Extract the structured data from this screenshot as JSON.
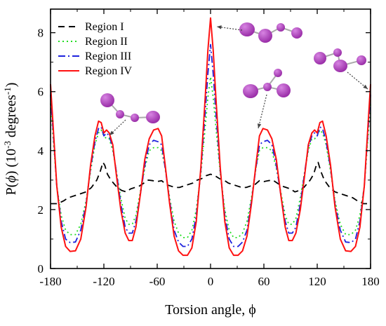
{
  "chart_data": {
    "type": "line",
    "xlabel": "Torsion angle, ϕ",
    "ylabel_parts": [
      "P(",
      "ϕ",
      ") (10",
      "-3",
      " degrees",
      "-1",
      ")"
    ],
    "xlim": [
      -180,
      180
    ],
    "ylim": [
      0,
      8.8
    ],
    "xticks": [
      -180,
      -120,
      -60,
      0,
      60,
      120,
      180
    ],
    "yticks": [
      0,
      2,
      4,
      6,
      8
    ],
    "legend_position": "top-left",
    "grid": false,
    "series": [
      {
        "name": "Region I",
        "color": "#000000",
        "dash": "9,6",
        "points": [
          [
            -180,
            2.2
          ],
          [
            -172,
            2.2
          ],
          [
            -165,
            2.3
          ],
          [
            -160,
            2.4
          ],
          [
            -150,
            2.5
          ],
          [
            -140,
            2.6
          ],
          [
            -134,
            2.75
          ],
          [
            -128,
            3.0
          ],
          [
            -124,
            3.3
          ],
          [
            -121,
            3.6
          ],
          [
            -119,
            3.5
          ],
          [
            -116,
            3.2
          ],
          [
            -112,
            3.0
          ],
          [
            -105,
            2.75
          ],
          [
            -100,
            2.65
          ],
          [
            -95,
            2.6
          ],
          [
            -90,
            2.7
          ],
          [
            -85,
            2.75
          ],
          [
            -80,
            2.8
          ],
          [
            -75,
            2.9
          ],
          [
            -70,
            3.0
          ],
          [
            -65,
            2.98
          ],
          [
            -60,
            2.95
          ],
          [
            -55,
            2.98
          ],
          [
            -50,
            2.85
          ],
          [
            -45,
            2.8
          ],
          [
            -40,
            2.75
          ],
          [
            -35,
            2.75
          ],
          [
            -30,
            2.8
          ],
          [
            -25,
            2.85
          ],
          [
            -20,
            2.9
          ],
          [
            -15,
            3.0
          ],
          [
            -10,
            3.05
          ],
          [
            -5,
            3.15
          ],
          [
            0,
            3.2
          ],
          [
            5,
            3.15
          ],
          [
            10,
            3.05
          ],
          [
            15,
            3.0
          ],
          [
            20,
            2.9
          ],
          [
            25,
            2.85
          ],
          [
            30,
            2.8
          ],
          [
            35,
            2.75
          ],
          [
            40,
            2.75
          ],
          [
            45,
            2.8
          ],
          [
            50,
            2.85
          ],
          [
            55,
            2.98
          ],
          [
            60,
            2.95
          ],
          [
            65,
            2.98
          ],
          [
            70,
            3.0
          ],
          [
            75,
            2.9
          ],
          [
            80,
            2.8
          ],
          [
            85,
            2.75
          ],
          [
            90,
            2.7
          ],
          [
            95,
            2.6
          ],
          [
            100,
            2.65
          ],
          [
            105,
            2.75
          ],
          [
            112,
            3.0
          ],
          [
            116,
            3.2
          ],
          [
            119,
            3.5
          ],
          [
            121,
            3.6
          ],
          [
            124,
            3.3
          ],
          [
            128,
            3.0
          ],
          [
            134,
            2.75
          ],
          [
            140,
            2.6
          ],
          [
            150,
            2.5
          ],
          [
            160,
            2.4
          ],
          [
            165,
            2.3
          ],
          [
            172,
            2.2
          ],
          [
            180,
            2.2
          ]
        ]
      },
      {
        "name": "Region II",
        "color": "#22dd22",
        "dash": "2,4",
        "points": [
          [
            -180,
            5.6
          ],
          [
            -177,
            4.4
          ],
          [
            -173,
            2.8
          ],
          [
            -168,
            1.8
          ],
          [
            -163,
            1.3
          ],
          [
            -158,
            1.15
          ],
          [
            -152,
            1.15
          ],
          [
            -146,
            1.5
          ],
          [
            -140,
            2.3
          ],
          [
            -135,
            3.3
          ],
          [
            -130,
            4.2
          ],
          [
            -126,
            4.6
          ],
          [
            -123,
            4.7
          ],
          [
            -120,
            4.5
          ],
          [
            -117,
            4.4
          ],
          [
            -114,
            4.4
          ],
          [
            -110,
            4.0
          ],
          [
            -106,
            3.3
          ],
          [
            -101,
            2.4
          ],
          [
            -96,
            1.7
          ],
          [
            -92,
            1.5
          ],
          [
            -88,
            1.5
          ],
          [
            -84,
            1.8
          ],
          [
            -79,
            2.6
          ],
          [
            -74,
            3.4
          ],
          [
            -69,
            4.0
          ],
          [
            -64,
            4.1
          ],
          [
            -59,
            4.1
          ],
          [
            -55,
            4.0
          ],
          [
            -51,
            3.4
          ],
          [
            -46,
            2.4
          ],
          [
            -41,
            1.6
          ],
          [
            -36,
            1.2
          ],
          [
            -31,
            1.05
          ],
          [
            -26,
            1.05
          ],
          [
            -21,
            1.3
          ],
          [
            -16,
            2.0
          ],
          [
            -11,
            3.2
          ],
          [
            -6,
            4.8
          ],
          [
            -3,
            5.8
          ],
          [
            0,
            6.5
          ],
          [
            3,
            5.8
          ],
          [
            6,
            4.8
          ],
          [
            11,
            3.2
          ],
          [
            16,
            2.0
          ],
          [
            21,
            1.3
          ],
          [
            26,
            1.05
          ],
          [
            31,
            1.05
          ],
          [
            36,
            1.2
          ],
          [
            41,
            1.6
          ],
          [
            46,
            2.4
          ],
          [
            51,
            3.4
          ],
          [
            55,
            4.0
          ],
          [
            59,
            4.1
          ],
          [
            64,
            4.1
          ],
          [
            69,
            4.0
          ],
          [
            74,
            3.4
          ],
          [
            79,
            2.6
          ],
          [
            84,
            1.8
          ],
          [
            88,
            1.5
          ],
          [
            92,
            1.5
          ],
          [
            96,
            1.7
          ],
          [
            101,
            2.4
          ],
          [
            106,
            3.3
          ],
          [
            110,
            4.0
          ],
          [
            114,
            4.4
          ],
          [
            117,
            4.4
          ],
          [
            120,
            4.5
          ],
          [
            123,
            4.7
          ],
          [
            126,
            4.6
          ],
          [
            130,
            4.2
          ],
          [
            135,
            3.3
          ],
          [
            140,
            2.3
          ],
          [
            146,
            1.5
          ],
          [
            152,
            1.15
          ],
          [
            158,
            1.15
          ],
          [
            163,
            1.3
          ],
          [
            168,
            1.8
          ],
          [
            173,
            2.8
          ],
          [
            177,
            4.4
          ],
          [
            180,
            5.6
          ]
        ]
      },
      {
        "name": "Region III",
        "color": "#1e22dd",
        "dash": "10,4,2,4",
        "points": [
          [
            -180,
            5.9
          ],
          [
            -177,
            4.6
          ],
          [
            -173,
            2.8
          ],
          [
            -168,
            1.6
          ],
          [
            -163,
            1.0
          ],
          [
            -158,
            0.88
          ],
          [
            -152,
            0.9
          ],
          [
            -146,
            1.3
          ],
          [
            -140,
            2.2
          ],
          [
            -135,
            3.4
          ],
          [
            -130,
            4.3
          ],
          [
            -126,
            4.75
          ],
          [
            -123,
            4.8
          ],
          [
            -120,
            4.5
          ],
          [
            -117,
            4.6
          ],
          [
            -114,
            4.5
          ],
          [
            -110,
            4.1
          ],
          [
            -106,
            3.3
          ],
          [
            -101,
            2.2
          ],
          [
            -96,
            1.4
          ],
          [
            -92,
            1.2
          ],
          [
            -88,
            1.2
          ],
          [
            -84,
            1.6
          ],
          [
            -79,
            2.5
          ],
          [
            -74,
            3.5
          ],
          [
            -69,
            4.2
          ],
          [
            -64,
            4.35
          ],
          [
            -59,
            4.3
          ],
          [
            -55,
            4.2
          ],
          [
            -51,
            3.4
          ],
          [
            -46,
            2.3
          ],
          [
            -41,
            1.3
          ],
          [
            -36,
            0.9
          ],
          [
            -31,
            0.75
          ],
          [
            -26,
            0.75
          ],
          [
            -21,
            1.0
          ],
          [
            -16,
            1.8
          ],
          [
            -11,
            3.3
          ],
          [
            -6,
            5.3
          ],
          [
            -3,
            6.6
          ],
          [
            0,
            7.6
          ],
          [
            3,
            6.6
          ],
          [
            6,
            5.3
          ],
          [
            11,
            3.3
          ],
          [
            16,
            1.8
          ],
          [
            21,
            1.0
          ],
          [
            26,
            0.75
          ],
          [
            31,
            0.75
          ],
          [
            36,
            0.9
          ],
          [
            41,
            1.3
          ],
          [
            46,
            2.3
          ],
          [
            51,
            3.4
          ],
          [
            55,
            4.2
          ],
          [
            59,
            4.3
          ],
          [
            64,
            4.35
          ],
          [
            69,
            4.2
          ],
          [
            74,
            3.5
          ],
          [
            79,
            2.5
          ],
          [
            84,
            1.6
          ],
          [
            88,
            1.2
          ],
          [
            92,
            1.2
          ],
          [
            96,
            1.4
          ],
          [
            101,
            2.2
          ],
          [
            106,
            3.3
          ],
          [
            110,
            4.1
          ],
          [
            114,
            4.5
          ],
          [
            117,
            4.6
          ],
          [
            120,
            4.5
          ],
          [
            123,
            4.8
          ],
          [
            126,
            4.75
          ],
          [
            130,
            4.3
          ],
          [
            135,
            3.4
          ],
          [
            140,
            2.2
          ],
          [
            146,
            1.3
          ],
          [
            152,
            0.9
          ],
          [
            158,
            0.88
          ],
          [
            163,
            1.0
          ],
          [
            168,
            1.6
          ],
          [
            173,
            2.8
          ],
          [
            177,
            4.6
          ],
          [
            180,
            5.9
          ]
        ]
      },
      {
        "name": "Region IV",
        "color": "#ff1111",
        "dash": "",
        "points": [
          [
            -180,
            6.25
          ],
          [
            -177,
            4.8
          ],
          [
            -173,
            2.8
          ],
          [
            -168,
            1.4
          ],
          [
            -163,
            0.75
          ],
          [
            -158,
            0.58
          ],
          [
            -152,
            0.6
          ],
          [
            -146,
            1.0
          ],
          [
            -140,
            2.1
          ],
          [
            -135,
            3.5
          ],
          [
            -130,
            4.5
          ],
          [
            -126,
            5.0
          ],
          [
            -123,
            4.95
          ],
          [
            -120,
            4.6
          ],
          [
            -117,
            4.7
          ],
          [
            -114,
            4.6
          ],
          [
            -110,
            4.2
          ],
          [
            -106,
            3.2
          ],
          [
            -101,
            2.0
          ],
          [
            -96,
            1.2
          ],
          [
            -92,
            0.95
          ],
          [
            -88,
            0.95
          ],
          [
            -84,
            1.4
          ],
          [
            -79,
            2.5
          ],
          [
            -74,
            3.7
          ],
          [
            -69,
            4.4
          ],
          [
            -64,
            4.7
          ],
          [
            -59,
            4.75
          ],
          [
            -55,
            4.5
          ],
          [
            -51,
            3.5
          ],
          [
            -46,
            2.2
          ],
          [
            -41,
            1.1
          ],
          [
            -36,
            0.6
          ],
          [
            -31,
            0.45
          ],
          [
            -26,
            0.45
          ],
          [
            -21,
            0.7
          ],
          [
            -16,
            1.6
          ],
          [
            -11,
            3.4
          ],
          [
            -6,
            5.8
          ],
          [
            -3,
            7.4
          ],
          [
            0,
            8.5
          ],
          [
            3,
            7.4
          ],
          [
            6,
            5.8
          ],
          [
            11,
            3.4
          ],
          [
            16,
            1.6
          ],
          [
            21,
            0.7
          ],
          [
            26,
            0.45
          ],
          [
            31,
            0.45
          ],
          [
            36,
            0.6
          ],
          [
            41,
            1.1
          ],
          [
            46,
            2.2
          ],
          [
            51,
            3.5
          ],
          [
            55,
            4.5
          ],
          [
            59,
            4.75
          ],
          [
            64,
            4.7
          ],
          [
            69,
            4.4
          ],
          [
            74,
            3.7
          ],
          [
            79,
            2.5
          ],
          [
            84,
            1.4
          ],
          [
            88,
            0.95
          ],
          [
            92,
            0.95
          ],
          [
            96,
            1.2
          ],
          [
            101,
            2.0
          ],
          [
            106,
            3.2
          ],
          [
            110,
            4.2
          ],
          [
            114,
            4.6
          ],
          [
            117,
            4.7
          ],
          [
            120,
            4.6
          ],
          [
            123,
            4.95
          ],
          [
            126,
            5.0
          ],
          [
            130,
            4.5
          ],
          [
            135,
            3.5
          ],
          [
            140,
            2.1
          ],
          [
            146,
            1.0
          ],
          [
            152,
            0.6
          ],
          [
            158,
            0.58
          ],
          [
            163,
            0.75
          ],
          [
            168,
            1.4
          ],
          [
            173,
            2.8
          ],
          [
            177,
            4.8
          ],
          [
            180,
            6.25
          ]
        ]
      }
    ],
    "molecule_color": "#9a2ea8",
    "molecule_highlight": "#d784e2"
  }
}
